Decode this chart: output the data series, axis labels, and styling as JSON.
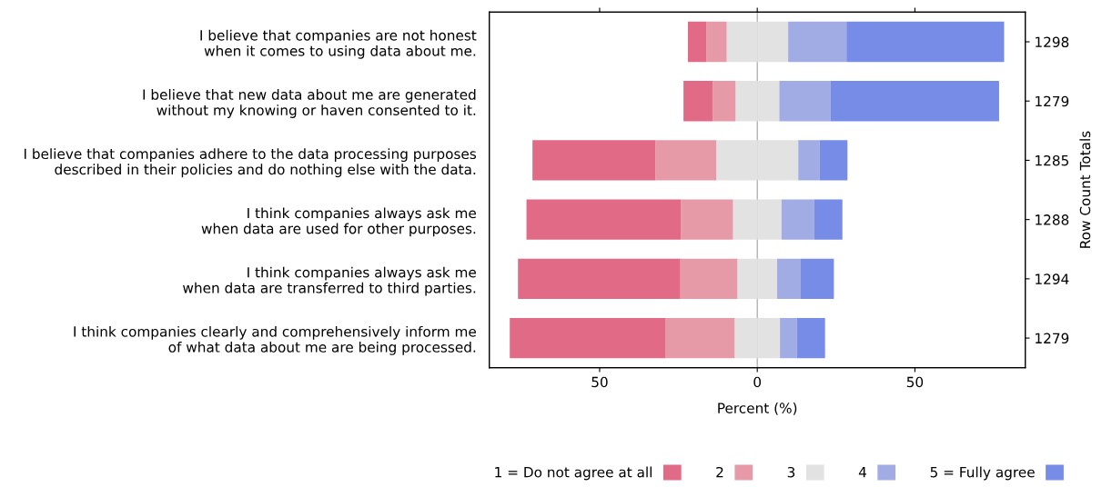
{
  "chart_data": {
    "type": "bar",
    "orientation": "horizontal",
    "stacked": true,
    "categories": [
      "I believe that companies are not honest\nwhen it comes to using data about me.",
      "I believe that new data about me are generated\nwithout my knowing or haven consented to it.",
      "I believe that companies adhere to the data processing purposes\ndescribed in their policies and do nothing else with the data.",
      "I think companies always ask me\nwhen data are used for other purposes.",
      "I think companies always ask me\nwhen data are transferred to third parties.",
      "I think companies clearly and comprehensively inform me\nof what data about me are being processed."
    ],
    "y2_categories": [
      "1298",
      "1279",
      "1285",
      "1288",
      "1294",
      "1279"
    ],
    "y2label": "Row Count Totals",
    "xlabel": "Percent (%)",
    "series": [
      {
        "name": "3",
        "color": "#e2e2e2",
        "values": [
          -9.7,
          -6.9,
          -13.0,
          -7.7,
          -6.3,
          -7.2
        ]
      },
      {
        "name": "2",
        "color": "#e69aa8",
        "values": [
          -6.4,
          -7.2,
          -19.3,
          -16.5,
          -18.1,
          -22.0
        ]
      },
      {
        "name": "1 = Do not agree at all",
        "color": "#e16a86",
        "values": [
          -5.9,
          -9.3,
          -39.0,
          -49.0,
          -51.5,
          -49.3
        ]
      },
      {
        "color": "#e2e2e2",
        "values": [
          9.8,
          7.0,
          13.0,
          7.7,
          6.3,
          7.2
        ]
      },
      {
        "name": "4",
        "color": "#a2acE4",
        "values": [
          18.5,
          16.3,
          6.8,
          10.4,
          7.5,
          5.4
        ]
      },
      {
        "name": "5 = Fully agree",
        "color": "#778ce6",
        "values": [
          50.0,
          53.4,
          8.8,
          8.9,
          10.5,
          8.9
        ]
      }
    ],
    "xlim": [
      -85,
      85
    ],
    "xticks": [
      {
        "value": -50,
        "label": "50"
      },
      0,
      50
    ],
    "ref_lines": [
      {
        "axis": "x",
        "value": 0,
        "color": "#a0a0a0"
      }
    ],
    "legend": "bottom",
    "grid": false
  }
}
